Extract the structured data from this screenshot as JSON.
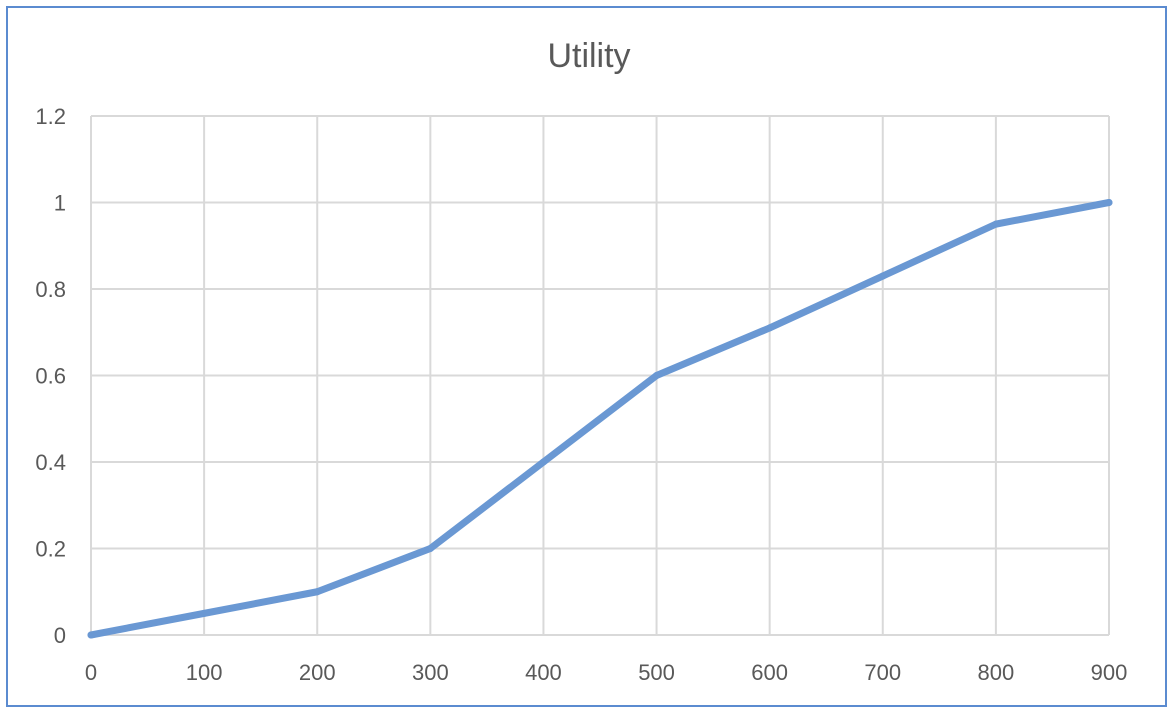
{
  "chart_data": {
    "type": "line",
    "title": "Utility",
    "xlabel": "",
    "ylabel": "",
    "x": [
      0,
      100,
      200,
      300,
      400,
      500,
      600,
      700,
      800,
      900
    ],
    "series": [
      {
        "values": [
          0,
          0.05,
          0.1,
          0.2,
          0.4,
          0.6,
          0.71,
          0.83,
          0.95,
          1.0
        ],
        "color": "#6a98d3"
      }
    ],
    "xlim": [
      0,
      900
    ],
    "ylim": [
      0,
      1.2
    ],
    "x_ticks": [
      "0",
      "100",
      "200",
      "300",
      "400",
      "500",
      "600",
      "700",
      "800",
      "900"
    ],
    "y_ticks": [
      "0",
      "0.2",
      "0.4",
      "0.6",
      "0.8",
      "1",
      "1.2"
    ],
    "grid": true,
    "legend": "none"
  }
}
